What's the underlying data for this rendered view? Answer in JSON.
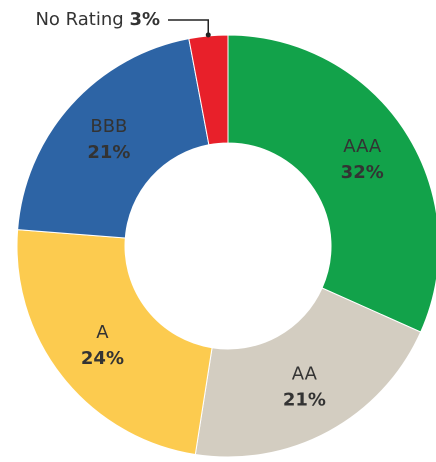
{
  "chart_data": {
    "type": "pie",
    "donut": true,
    "categories": [
      "AAA",
      "AA",
      "A",
      "BBB",
      "No Rating"
    ],
    "values": [
      32,
      21,
      24,
      21,
      3
    ],
    "value_labels": [
      "32%",
      "21%",
      "24%",
      "21%",
      "3%"
    ],
    "colors": [
      "#12a24a",
      "#d3cdc1",
      "#fccb4f",
      "#2d64a5",
      "#e8202a"
    ]
  }
}
